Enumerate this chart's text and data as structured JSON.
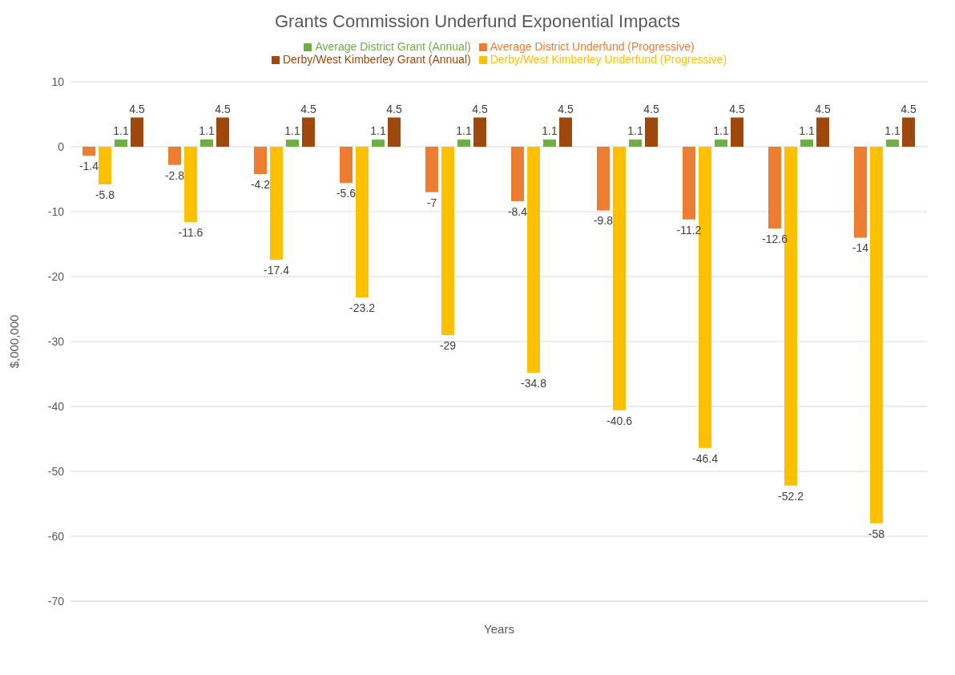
{
  "chart_data": {
    "type": "bar",
    "title": "Grants Commission Underfund Exponential Impacts",
    "xlabel": "Years",
    "ylabel": "$,000,000",
    "categories": [
      null,
      null,
      null,
      null,
      null,
      null,
      null,
      null,
      null,
      null
    ],
    "series": [
      {
        "name": "Average District Underfund (Progressive)",
        "color": "#ed7d31",
        "values": [
          -1.4,
          -2.8,
          -4.2,
          -5.6,
          -7,
          -8.4,
          -9.8,
          -11.2,
          -12.6,
          -14
        ]
      },
      {
        "name": "Derby/West Kimberley Underfund (Progressive)",
        "color": "#ffc000",
        "values": [
          -5.8,
          -11.6,
          -17.4,
          -23.2,
          -29,
          -34.8,
          -40.6,
          -46.4,
          -52.2,
          -58
        ]
      },
      {
        "name": "Average District Grant (Annual)",
        "color": "#70ad47",
        "values": [
          1.1,
          1.1,
          1.1,
          1.1,
          1.1,
          1.1,
          1.1,
          1.1,
          1.1,
          1.1
        ]
      },
      {
        "name": "Derby/West Kimberley Grant (Annual)",
        "color": "#9e480e",
        "values": [
          4.5,
          4.5,
          4.5,
          4.5,
          4.5,
          4.5,
          4.5,
          4.5,
          4.5,
          4.5
        ]
      }
    ],
    "ylim": [
      -70,
      10
    ],
    "yticks": [
      -70,
      -60,
      -50,
      -40,
      -30,
      -20,
      -10,
      0,
      10
    ],
    "grid": "y",
    "legend": "top",
    "data_labels": true
  }
}
